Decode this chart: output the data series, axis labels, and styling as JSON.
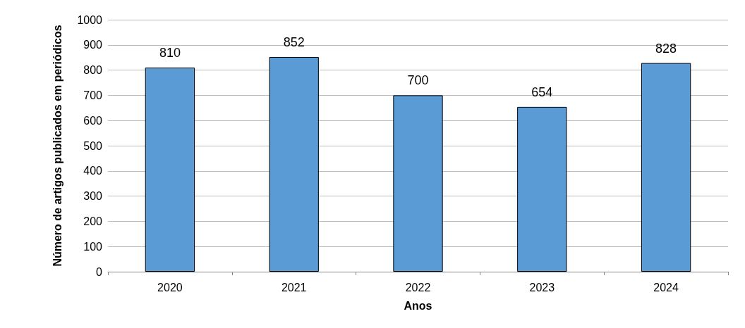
{
  "chart_data": {
    "type": "bar",
    "xlabel": "Anos",
    "ylabel": "Número de artigos publicados em periódicos",
    "categories": [
      "2020",
      "2021",
      "2022",
      "2023",
      "2024"
    ],
    "values": [
      810,
      852,
      700,
      654,
      828
    ],
    "color": "#5b9bd5",
    "ylim": [
      0,
      1000
    ],
    "yticks": [
      0,
      100,
      200,
      300,
      400,
      500,
      600,
      700,
      800,
      900,
      1000
    ],
    "grid": "y",
    "data_labels": true
  }
}
